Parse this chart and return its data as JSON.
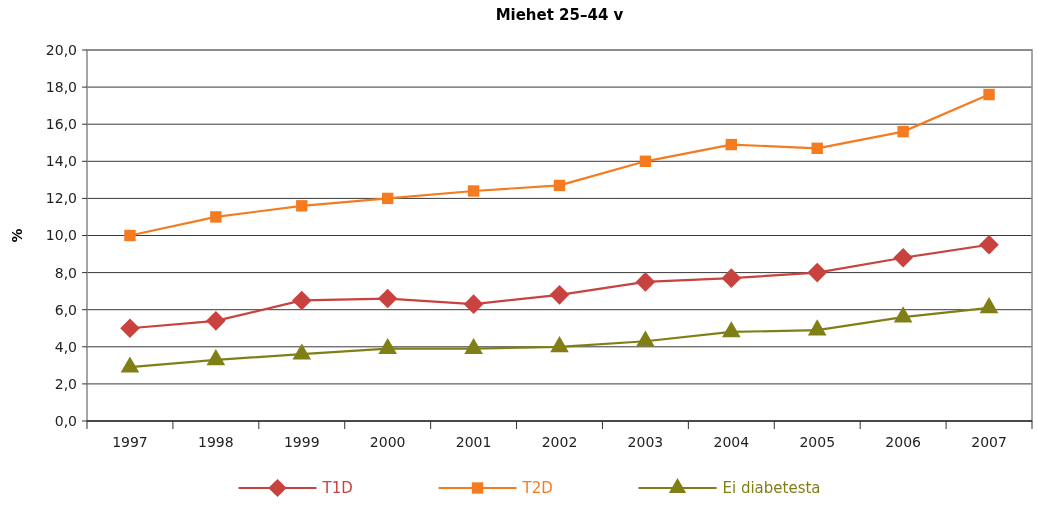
{
  "chart_data": {
    "type": "line",
    "title": "Miehet 25–44 v",
    "ylabel": "%",
    "categories": [
      "1997",
      "1998",
      "1999",
      "2000",
      "2001",
      "2002",
      "2003",
      "2004",
      "2005",
      "2006",
      "2007"
    ],
    "series": [
      {
        "name": "T1D",
        "color": "#c8423f",
        "marker": "diamond",
        "values": [
          5.0,
          5.4,
          6.5,
          6.6,
          6.3,
          6.8,
          7.5,
          7.7,
          8.0,
          8.8,
          9.5
        ]
      },
      {
        "name": "T2D",
        "color": "#f47b20",
        "marker": "square",
        "values": [
          10.0,
          11.0,
          11.6,
          12.0,
          12.4,
          12.7,
          14.0,
          14.9,
          14.7,
          15.6,
          17.6
        ]
      },
      {
        "name": "Ei diabetesta",
        "color": "#7f7f16",
        "marker": "triangle",
        "values": [
          2.9,
          3.3,
          3.6,
          3.9,
          3.9,
          4.0,
          4.3,
          4.8,
          4.9,
          5.6,
          6.1
        ]
      }
    ],
    "ylim": [
      0,
      20
    ],
    "yticks": [
      {
        "value": 0,
        "label": "0,0"
      },
      {
        "value": 2,
        "label": "2,0"
      },
      {
        "value": 4,
        "label": "4,0"
      },
      {
        "value": 6,
        "label": "6,0"
      },
      {
        "value": 8,
        "label": "8,0"
      },
      {
        "value": 10,
        "label": "10,0"
      },
      {
        "value": 12,
        "label": "12,0"
      },
      {
        "value": 14,
        "label": "14,0"
      },
      {
        "value": 16,
        "label": "16,0"
      },
      {
        "value": 18,
        "label": "18,0"
      },
      {
        "value": 20,
        "label": "20,0"
      }
    ],
    "grid": "y",
    "legend": "bottom",
    "line_style": "solid"
  }
}
